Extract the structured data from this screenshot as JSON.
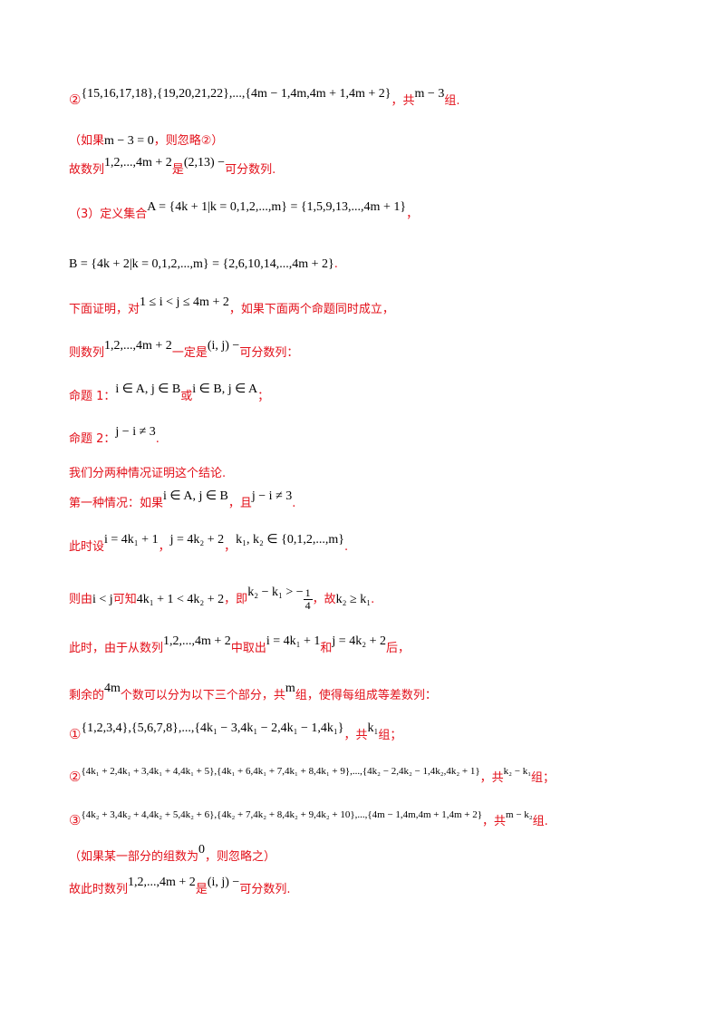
{
  "lines": {
    "l1": {
      "mark": "②",
      "math": "{15,16,17,18},{19,20,21,22},...,{4m − 1,4m,4m + 1,4m + 2}",
      "t1": "，共",
      "math2": "m − 3",
      "t2": "组."
    },
    "l2": {
      "t1": "（如果",
      "math": "m − 3 = 0",
      "t2": "，则忽略②）"
    },
    "l3": {
      "t1": "故数列",
      "math": "1,2,...,4m + 2",
      "t2": "是",
      "math2": "(2,13) −",
      "t3": "可分数列."
    },
    "l4": {
      "t1": "（3）定义集合",
      "math": "A = {4k + 1|k = 0,1,2,...,m} = {1,5,9,13,...,4m + 1}",
      "t2": "，"
    },
    "l5": {
      "math": "B = {4k + 2|k = 0,1,2,...,m} = {2,6,10,14,...,4m + 2}",
      "t2": "."
    },
    "l6": {
      "t1": "下面证明，对",
      "math": "1 ≤ i < j ≤ 4m + 2",
      "t2": "，如果下面两个命题同时成立，"
    },
    "l7": {
      "t1": "则数列",
      "math": "1,2,...,4m + 2",
      "t2": "一定是",
      "math2": "(i, j) −",
      "t3": "可分数列："
    },
    "l8": {
      "t1": "命题 1：",
      "math": "i ∈ A, j ∈ B",
      "t2": "或",
      "math2": "i ∈ B, j ∈ A",
      "t3": "；"
    },
    "l9": {
      "t1": "命题 2：",
      "math": "j − i ≠ 3",
      "t2": "."
    },
    "l10": {
      "t1": "我们分两种情况证明这个结论."
    },
    "l11": {
      "t1": "第一种情况：如果",
      "math": "i ∈ A, j ∈ B",
      "t2": "，且",
      "math2": "j − i ≠ 3",
      "t3": "."
    },
    "l12": {
      "t1": "此时设",
      "math": "i = 4k₁ + 1",
      "t2": "，",
      "math2": "j = 4k₂ + 2",
      "t3": "，",
      "math3": "k₁, k₂ ∈ {0,1,2,...,m}",
      "t4": "."
    },
    "l13": {
      "t1": "则由",
      "math": "i < j",
      "t2": "可知",
      "math2": "4k₁ + 1 < 4k₂ + 2",
      "t3": "，即",
      "math3": "k₂ − k₁ > −",
      "num": "1",
      "den": "4",
      "t4": "，故",
      "math4": "k₂ ≥ k₁",
      "t5": "."
    },
    "l14": {
      "t1": "此时，由于从数列",
      "math": "1,2,...,4m + 2",
      "t2": "中取出",
      "math2": "i = 4k₁ + 1",
      "t3": "和",
      "math3": "j = 4k₂ + 2",
      "t4": "后，"
    },
    "l15": {
      "t1": "剩余的",
      "math": "4m",
      "t2": "个数可以分为以下三个部分，共",
      "math2": "m",
      "t3": "组，使得每组成等差数列："
    },
    "l16": {
      "mark": "①",
      "math": "{1,2,3,4},{5,6,7,8},...,{4k₁ − 3,4k₁ − 2,4k₁ − 1,4k₁}",
      "t1": "，共",
      "math2": "k₁",
      "t2": "组；"
    },
    "l17": {
      "mark": "②",
      "math": "{4k₁ + 2,4k₁ + 3,4k₁ + 4,4k₁ + 5},{4k₁ + 6,4k₁ + 7,4k₁ + 8,4k₁ + 9},...,{4k₂ − 2,4k₂ − 1,4k₂,4k₂ + 1}",
      "t1": "，共",
      "math2": "k₂ − k₁",
      "t2": "组；"
    },
    "l18": {
      "mark": "③",
      "math": "{4k₂ + 3,4k₂ + 4,4k₂ + 5,4k₂ + 6},{4k₂ + 7,4k₂ + 8,4k₂ + 9,4k₂ + 10},...,{4m − 1,4m,4m + 1,4m + 2}",
      "t1": "，共",
      "math2": "m − k₂",
      "t2": "组."
    },
    "l19": {
      "t1": "（如果某一部分的组数为",
      "math": "0",
      "t2": "，则忽略之）"
    },
    "l20": {
      "t1": "故此时数列",
      "math": "1,2,...,4m + 2",
      "t2": "是",
      "math2": "(i, j) −",
      "t3": "可分数列."
    }
  }
}
